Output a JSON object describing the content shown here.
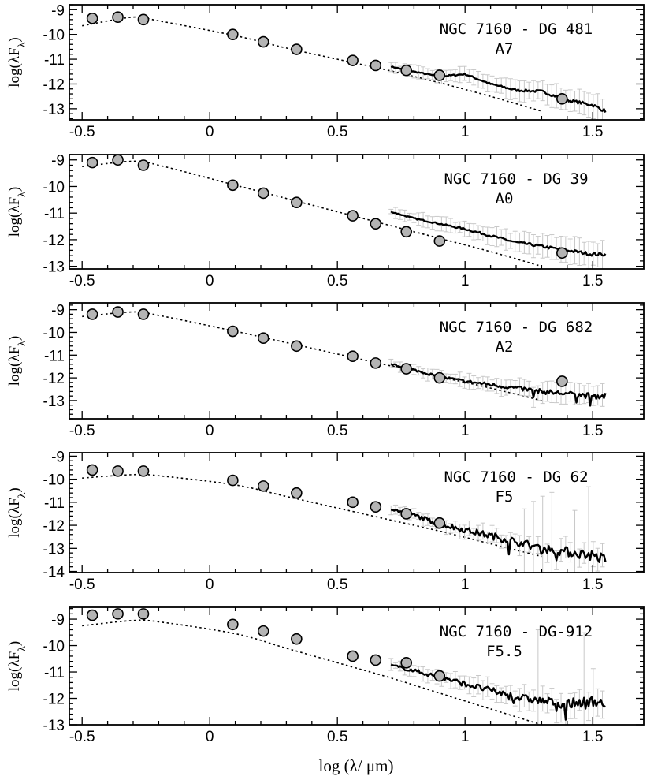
{
  "chart_data": {
    "type": "scatter",
    "x_axis": {
      "label": "log (λ/ μm)",
      "ticks": [
        "-0.5",
        "0",
        "0.5",
        "1",
        "1.5"
      ],
      "range": [
        -0.55,
        1.7
      ]
    },
    "y_axis_label": "log(λF_λ)",
    "panels": [
      {
        "title": "NGC 7160 - DG 481",
        "spectral_type": "A7",
        "ylim": [
          -13.45,
          -8.8
        ],
        "y_ticks": [
          "-9",
          "-10",
          "-11",
          "-12",
          "-13"
        ],
        "photometry": {
          "x": [
            -0.46,
            -0.36,
            -0.26,
            0.09,
            0.21,
            0.34,
            0.56,
            0.65,
            0.77,
            0.9,
            1.38
          ],
          "y": [
            -9.35,
            -9.3,
            -9.4,
            -10.0,
            -10.3,
            -10.6,
            -11.05,
            -11.25,
            -11.45,
            -11.65,
            -12.6
          ]
        },
        "model_curve": {
          "x": [
            -0.5,
            -0.3,
            -0.2,
            0.1,
            0.3,
            0.5,
            0.7,
            0.9,
            1.1,
            1.3
          ],
          "y": [
            -9.65,
            -9.3,
            -9.45,
            -10.05,
            -10.55,
            -11.0,
            -11.45,
            -11.95,
            -12.5,
            -13.1
          ]
        },
        "spectrum": {
          "x": [
            0.71,
            0.8,
            0.9,
            1.0,
            1.1,
            1.2,
            1.3,
            1.4,
            1.5,
            1.55
          ],
          "y": [
            -11.3,
            -11.5,
            -11.7,
            -11.6,
            -12.0,
            -12.25,
            -12.3,
            -12.65,
            -12.85,
            -13.1
          ]
        }
      },
      {
        "title": "NGC 7160 - DG 39",
        "spectral_type": "A0",
        "ylim": [
          -13.1,
          -8.8
        ],
        "y_ticks": [
          "-9",
          "-10",
          "-11",
          "-12",
          "-13"
        ],
        "photometry": {
          "x": [
            -0.46,
            -0.36,
            -0.26,
            0.09,
            0.21,
            0.34,
            0.56,
            0.65,
            0.77,
            0.9,
            1.38
          ],
          "y": [
            -9.1,
            -9.0,
            -9.2,
            -9.95,
            -10.25,
            -10.6,
            -11.1,
            -11.4,
            -11.7,
            -12.05,
            -12.5
          ]
        },
        "model_curve": {
          "x": [
            -0.5,
            -0.3,
            -0.2,
            0.1,
            0.3,
            0.5,
            0.7,
            0.9,
            1.1,
            1.3
          ],
          "y": [
            -9.25,
            -9.05,
            -9.2,
            -9.95,
            -10.45,
            -10.95,
            -11.45,
            -11.95,
            -12.45,
            -13.0
          ]
        },
        "spectrum": {
          "x": [
            0.71,
            0.8,
            0.9,
            1.0,
            1.1,
            1.2,
            1.3,
            1.4,
            1.5,
            1.55
          ],
          "y": [
            -10.95,
            -11.2,
            -11.4,
            -11.6,
            -11.85,
            -12.1,
            -12.25,
            -12.4,
            -12.55,
            -12.55
          ]
        }
      },
      {
        "title": "NGC 7160 - DG 682",
        "spectral_type": "A2",
        "ylim": [
          -13.8,
          -8.7
        ],
        "y_ticks": [
          "-9",
          "-10",
          "-11",
          "-12",
          "-13"
        ],
        "photometry": {
          "x": [
            -0.46,
            -0.36,
            -0.26,
            0.09,
            0.21,
            0.34,
            0.56,
            0.65,
            0.77,
            0.9,
            1.38
          ],
          "y": [
            -9.2,
            -9.1,
            -9.2,
            -9.95,
            -10.25,
            -10.6,
            -11.05,
            -11.35,
            -11.6,
            -12.0,
            -12.15
          ]
        },
        "model_curve": {
          "x": [
            -0.5,
            -0.3,
            -0.2,
            0.1,
            0.3,
            0.5,
            0.7,
            0.9,
            1.1,
            1.3
          ],
          "y": [
            -9.3,
            -9.1,
            -9.25,
            -9.95,
            -10.45,
            -10.95,
            -11.45,
            -11.95,
            -12.45,
            -13.0
          ]
        },
        "spectrum": {
          "x": [
            0.71,
            0.8,
            0.9,
            1.0,
            1.1,
            1.2,
            1.3,
            1.4,
            1.5,
            1.55
          ],
          "y": [
            -11.4,
            -11.65,
            -11.95,
            -12.15,
            -12.3,
            -12.45,
            -12.6,
            -12.7,
            -12.8,
            -12.8
          ]
        }
      },
      {
        "title": "NGC 7160 - DG 62",
        "spectral_type": "F5",
        "ylim": [
          -14.05,
          -8.85
        ],
        "y_ticks": [
          "-9",
          "-10",
          "-11",
          "-12",
          "-13",
          "-14"
        ],
        "photometry": {
          "x": [
            -0.46,
            -0.36,
            -0.26,
            0.09,
            0.21,
            0.34,
            0.56,
            0.65,
            0.77,
            0.9
          ],
          "y": [
            -9.6,
            -9.65,
            -9.65,
            -10.05,
            -10.3,
            -10.6,
            -11.0,
            -11.2,
            -11.5,
            -11.9
          ]
        },
        "model_curve": {
          "x": [
            -0.5,
            -0.3,
            -0.2,
            0.1,
            0.3,
            0.5,
            0.7,
            0.9,
            1.1,
            1.3
          ],
          "y": [
            -9.95,
            -9.8,
            -9.85,
            -10.25,
            -10.75,
            -11.25,
            -11.75,
            -12.25,
            -12.8,
            -13.35
          ]
        },
        "spectrum": {
          "x": [
            0.71,
            0.8,
            0.9,
            1.0,
            1.1,
            1.2,
            1.3,
            1.4,
            1.5,
            1.55
          ],
          "y": [
            -11.3,
            -11.55,
            -11.95,
            -12.2,
            -12.45,
            -12.7,
            -13.0,
            -13.15,
            -13.3,
            -13.5
          ]
        }
      },
      {
        "title": "NGC 7160 - DG-912",
        "spectral_type": "F5.5",
        "ylim": [
          -13.0,
          -8.55
        ],
        "y_ticks": [
          "-9",
          "-10",
          "-11",
          "-12",
          "-13"
        ],
        "photometry": {
          "x": [
            -0.46,
            -0.36,
            -0.26,
            0.09,
            0.21,
            0.34,
            0.56,
            0.65,
            0.77,
            0.9
          ],
          "y": [
            -8.85,
            -8.8,
            -8.8,
            -9.2,
            -9.45,
            -9.75,
            -10.4,
            -10.55,
            -10.65,
            -11.15
          ]
        },
        "model_curve": {
          "x": [
            -0.5,
            -0.3,
            -0.2,
            0.1,
            0.3,
            0.5,
            0.7,
            0.9,
            1.1,
            1.3
          ],
          "y": [
            -9.25,
            -9.05,
            -9.1,
            -9.55,
            -10.1,
            -10.65,
            -11.2,
            -11.8,
            -12.4,
            -13.0
          ]
        },
        "spectrum": {
          "x": [
            0.71,
            0.8,
            0.9,
            1.0,
            1.1,
            1.2,
            1.3,
            1.4,
            1.5,
            1.55
          ],
          "y": [
            -10.75,
            -10.95,
            -11.2,
            -11.45,
            -11.7,
            -11.95,
            -12.1,
            -12.2,
            -12.1,
            -12.2
          ]
        }
      }
    ]
  }
}
